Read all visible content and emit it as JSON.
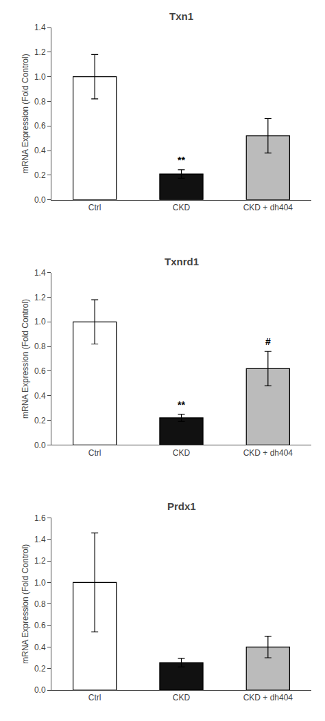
{
  "chart_data": [
    {
      "type": "bar",
      "title": "Txn1",
      "categories": [
        "Ctrl",
        "CKD",
        "CKD + dh404"
      ],
      "values": [
        1.0,
        0.21,
        0.52
      ],
      "errors": [
        0.18,
        0.035,
        0.14
      ],
      "colors": [
        "#ffffff",
        "#111111",
        "#bbbbbb"
      ],
      "ylabel": "mRNA Expression (Fold Control)",
      "ylim": [
        0,
        1.4
      ],
      "yticks": [
        {
          "value": 0.0,
          "label": "0.0"
        },
        0.2,
        0.4,
        0.6,
        0.8,
        {
          "value": 1.0,
          "label": "1.0"
        },
        1.2,
        1.4
      ],
      "annotations": [
        {
          "category": "CKD",
          "text": "**"
        }
      ],
      "grid": false
    },
    {
      "type": "bar",
      "title": "Txnrd1",
      "categories": [
        "Ctrl",
        "CKD",
        "CKD + dh404"
      ],
      "values": [
        1.0,
        0.22,
        0.62
      ],
      "errors": [
        0.18,
        0.03,
        0.14
      ],
      "colors": [
        "#ffffff",
        "#111111",
        "#bbbbbb"
      ],
      "ylabel": "mRNA Expression (Fold Control)",
      "ylim": [
        0,
        1.4
      ],
      "yticks": [
        {
          "value": 0.0,
          "label": "0.0"
        },
        0.2,
        0.4,
        0.6,
        0.8,
        {
          "value": 1.0,
          "label": "1.0"
        },
        1.2,
        1.4
      ],
      "annotations": [
        {
          "category": "CKD",
          "text": "**"
        },
        {
          "category": "CKD + dh404",
          "text": "#"
        }
      ],
      "grid": false
    },
    {
      "type": "bar",
      "title": "Prdx1",
      "categories": [
        "Ctrl",
        "CKD",
        "CKD + dh404"
      ],
      "values": [
        1.0,
        0.255,
        0.4
      ],
      "errors": [
        0.46,
        0.04,
        0.1
      ],
      "colors": [
        "#ffffff",
        "#111111",
        "#bbbbbb"
      ],
      "ylabel": "mRNA Expression (Fold Control)",
      "ylim": [
        0,
        1.6
      ],
      "yticks": [
        {
          "value": 0.0,
          "label": "0.0"
        },
        0.2,
        0.4,
        0.6,
        0.8,
        {
          "value": 1.0,
          "label": "1.0"
        },
        1.2,
        1.4,
        1.6
      ],
      "annotations": [],
      "grid": false
    }
  ]
}
